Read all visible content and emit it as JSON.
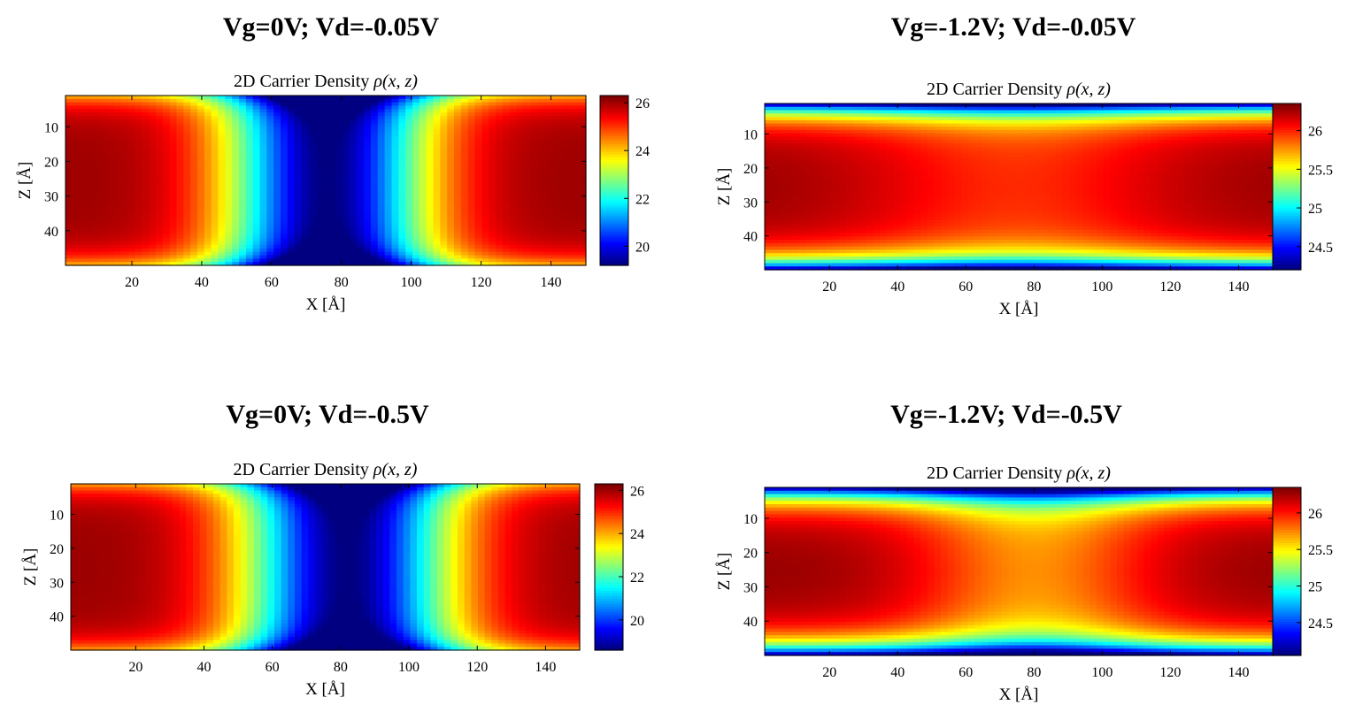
{
  "chart_data": [
    {
      "type": "heatmap",
      "heading": "Vg=0V; Vd=-0.05V",
      "title": "2D Carrier Density",
      "title_math": "ρ(x, z)",
      "xlabel": "X [Å]",
      "ylabel": "Z [Å]",
      "xlim": [
        1,
        150
      ],
      "ylim": [
        1,
        50
      ],
      "y_reversed": true,
      "xticks": [
        20,
        40,
        60,
        80,
        100,
        120,
        140
      ],
      "yticks": [
        10,
        20,
        30,
        40
      ],
      "colormap": "jet",
      "colorbar": {
        "min": 19.2,
        "max": 26.3,
        "ticks": [
          20,
          22,
          24,
          26
        ]
      },
      "model": {
        "kind": "channel",
        "center": 76,
        "width": 58,
        "profile": [
          26.1,
          19.2
        ],
        "edge_depth": 3.5,
        "edge_drop": 2.0
      }
    },
    {
      "type": "heatmap",
      "heading": "Vg=-1.2V; Vd=-0.05V",
      "title": "2D Carrier Density",
      "title_math": "ρ(x, z)",
      "xlabel": "X [Å]",
      "ylabel": "Z [Å]",
      "xlim": [
        1,
        150
      ],
      "ylim": [
        1,
        50
      ],
      "y_reversed": true,
      "xticks": [
        20,
        40,
        60,
        80,
        100,
        120,
        140
      ],
      "yticks": [
        10,
        20,
        30,
        40
      ],
      "colormap": "jet",
      "colorbar": {
        "min": 24.2,
        "max": 26.35,
        "ticks": [
          24.5,
          25,
          25.5,
          26
        ]
      },
      "model": {
        "kind": "gated",
        "center": 75,
        "width": 90,
        "profile": [
          26.3,
          26.0
        ],
        "edge_depth": 3.8,
        "edge_drop": 2.1
      }
    },
    {
      "type": "heatmap",
      "heading": "Vg=0V; Vd=-0.5V",
      "title": "2D Carrier Density",
      "title_math": "ρ(x, z)",
      "xlabel": "X [Å]",
      "ylabel": "Z [Å]",
      "xlim": [
        1,
        150
      ],
      "ylim": [
        1,
        50
      ],
      "y_reversed": true,
      "xticks": [
        20,
        40,
        60,
        80,
        100,
        120,
        140
      ],
      "yticks": [
        10,
        20,
        30,
        40
      ],
      "colormap": "jet",
      "colorbar": {
        "min": 18.6,
        "max": 26.3,
        "ticks": [
          20,
          22,
          24,
          26
        ]
      },
      "model": {
        "kind": "channel",
        "center": 82,
        "width": 62,
        "profile": [
          26.1,
          18.6
        ],
        "edge_depth": 3.5,
        "edge_drop": 2.0
      }
    },
    {
      "type": "heatmap",
      "heading": "Vg=-1.2V; Vd=-0.5V",
      "title": "2D Carrier Density",
      "title_math": "ρ(x, z)",
      "xlabel": "X [Å]",
      "ylabel": "Z [Å]",
      "xlim": [
        1,
        150
      ],
      "ylim": [
        1,
        50
      ],
      "y_reversed": true,
      "xticks": [
        20,
        40,
        60,
        80,
        100,
        120,
        140
      ],
      "yticks": [
        10,
        20,
        30,
        40
      ],
      "colormap": "jet",
      "colorbar": {
        "min": 24.05,
        "max": 26.35,
        "ticks": [
          24.5,
          25,
          25.5,
          26
        ]
      },
      "model": {
        "kind": "gated",
        "center": 80,
        "width": 70,
        "profile": [
          26.3,
          25.75
        ],
        "edge_depth": 4.2,
        "edge_drop": 2.3
      }
    }
  ]
}
